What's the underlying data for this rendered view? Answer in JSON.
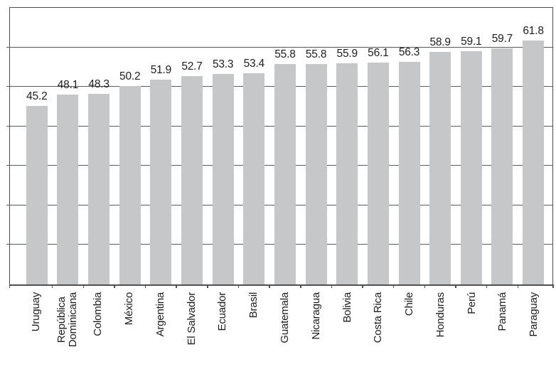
{
  "chart_data": {
    "type": "bar",
    "title": "",
    "xlabel": "",
    "ylabel": "",
    "categories": [
      "Uruguay",
      "República\nDominicana",
      "Colombia",
      "México",
      "Argentina",
      "El Salvador",
      "Ecuador",
      "Brasil",
      "Guatemala",
      "Nicaragua",
      "Bolivia",
      "Costa Rica",
      "Chile",
      "Honduras",
      "Perú",
      "Panamá",
      "Paraguay"
    ],
    "values": [
      45.2,
      48.1,
      48.3,
      50.2,
      51.9,
      52.7,
      53.3,
      53.4,
      55.8,
      55.8,
      55.9,
      56.1,
      56.3,
      58.9,
      59.1,
      59.7,
      61.8
    ],
    "data_labels": [
      "45.2",
      "48.1",
      "48.3",
      "50.2",
      "51.9",
      "52.7",
      "53.3",
      "53.4",
      "55.8",
      "55.8",
      "55.9",
      "56.1",
      "56.3",
      "58.9",
      "59.1",
      "59.7",
      "61.8"
    ],
    "ylim": [
      0,
      70
    ],
    "gridline_step": 10,
    "grid": true,
    "y_tick_labels_visible": false,
    "legend_position": "none",
    "colors": {
      "bar_fill": "#c6c7c9",
      "gridline": "#58595b",
      "frame": "#4e4f51",
      "tick": "#4e4f51",
      "text": "#1d1d1f",
      "background": "#ffffff"
    }
  }
}
